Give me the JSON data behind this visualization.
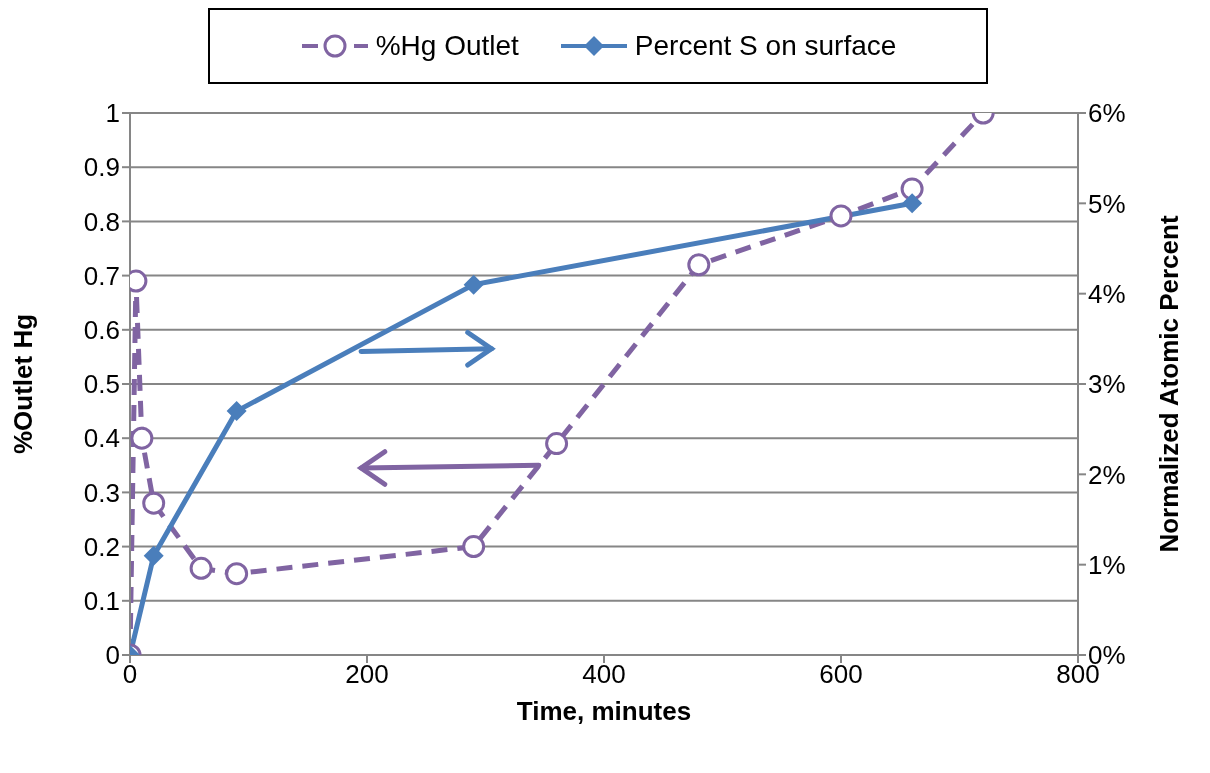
{
  "chart_data": {
    "type": "line",
    "xlabel": "Time, minutes",
    "ylabel": "%Outlet Hg",
    "y2label": "Normalized Atomic Percent",
    "xlim": [
      0,
      800
    ],
    "xticks": [
      0,
      200,
      400,
      600,
      800
    ],
    "ylim": [
      0,
      1
    ],
    "yticks": [
      0,
      0.1,
      0.2,
      0.3,
      0.4,
      0.5,
      0.6,
      0.7,
      0.8,
      0.9,
      1
    ],
    "y2lim": [
      0,
      6
    ],
    "y2ticks": [
      {
        "value": 0,
        "label": "0%"
      },
      {
        "value": 1,
        "label": "1%"
      },
      {
        "value": 2,
        "label": "2%"
      },
      {
        "value": 3,
        "label": "3%"
      },
      {
        "value": 4,
        "label": "4%"
      },
      {
        "value": 5,
        "label": "5%"
      },
      {
        "value": 6,
        "label": "6%"
      }
    ],
    "grid": "y",
    "legend": "top",
    "series": [
      {
        "name": "%Hg Outlet",
        "color": "#8064a2",
        "marker": "circle",
        "line_style": "dashed",
        "x": [
          0,
          5,
          10,
          20,
          60,
          90,
          290,
          360,
          480,
          600,
          660,
          720
        ],
        "values": [
          0,
          0.69,
          0.4,
          0.28,
          0.16,
          0.15,
          0.2,
          0.39,
          0.72,
          0.81,
          0.86,
          1.0
        ]
      },
      {
        "name": "Percent S on surface",
        "color": "#4a7ebb",
        "marker": "diamond",
        "line_style": "solid",
        "axis": "y2",
        "x": [
          0,
          20,
          90,
          290,
          660
        ],
        "values": [
          0,
          1.1,
          2.7,
          4.1,
          5.0
        ]
      }
    ]
  }
}
